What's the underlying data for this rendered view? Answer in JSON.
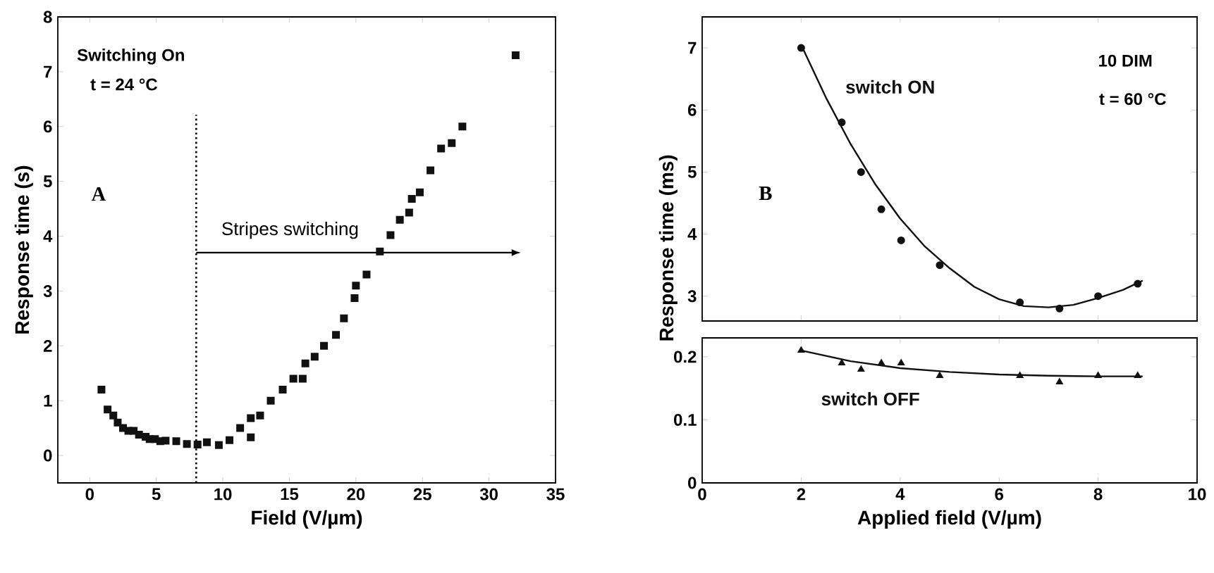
{
  "chart_data": [
    {
      "type": "scatter",
      "xlabel": "Field (V/µm)",
      "ylabel": "Response time (s)",
      "xlim": [
        -2.4,
        35
      ],
      "ylim": [
        -0.5,
        8
      ],
      "xticks": [
        0,
        5,
        10,
        15,
        20,
        25,
        30,
        35
      ],
      "yticks": [
        0,
        1,
        2,
        3,
        4,
        5,
        6,
        7,
        8
      ],
      "marker": "square",
      "annotations": [
        "Switching On",
        "t = 24 °C",
        "A",
        {
          "text": "Stripes switching",
          "x": 8,
          "y": 3.7
        }
      ],
      "ref_lines": [
        {
          "axis": "x",
          "value": 8,
          "line_style": "dotted",
          "color": "#000000"
        }
      ],
      "series": [
        {
          "color": "#111111",
          "x": [
            0.88,
            1.34,
            1.77,
            2.1,
            2.5,
            2.9,
            3.3,
            3.7,
            4.2,
            4.5,
            4.9,
            5.3,
            5.7,
            6.5,
            7.3,
            8.1,
            8.8,
            9.7,
            10.5,
            11.3,
            12.1,
            12.1,
            12.8,
            13.6,
            14.5,
            15.3,
            16.0,
            16.2,
            16.9,
            17.6,
            18.5,
            19.1,
            19.9,
            20.0,
            20.8,
            21.8,
            22.6,
            23.3,
            24.0,
            24.2,
            24.8,
            25.6,
            26.4,
            27.2,
            28.0,
            32.0
          ],
          "values": [
            1.2,
            0.84,
            0.73,
            0.6,
            0.5,
            0.45,
            0.45,
            0.38,
            0.34,
            0.3,
            0.3,
            0.26,
            0.27,
            0.26,
            0.21,
            0.2,
            0.24,
            0.19,
            0.28,
            0.5,
            0.68,
            0.33,
            0.73,
            1.0,
            1.2,
            1.4,
            1.4,
            1.68,
            1.8,
            2.0,
            2.2,
            2.5,
            2.87,
            3.1,
            3.3,
            3.72,
            4.02,
            4.3,
            4.43,
            4.68,
            4.8,
            5.2,
            5.6,
            5.7,
            6.0,
            7.3
          ]
        }
      ]
    },
    {
      "type": "scatter",
      "ylabel": "Response time (ms)",
      "xlim": [
        0,
        10
      ],
      "ylim": [
        2.6,
        7.5
      ],
      "xticks": [
        0,
        2,
        4,
        6,
        8,
        10
      ],
      "yticks": [
        3,
        4,
        5,
        6,
        7
      ],
      "tick_labels": "y",
      "annotations": [
        "10 DIM",
        "t = 60 °C",
        "B"
      ],
      "series": [
        {
          "name": "switch ON",
          "color": "#111111",
          "marker": "circle",
          "x": [
            2.0,
            2.82,
            3.21,
            3.62,
            4.02,
            4.8,
            6.42,
            7.22,
            8.0,
            8.8
          ],
          "values": [
            7.0,
            5.8,
            5.0,
            4.4,
            3.9,
            3.5,
            2.9,
            2.8,
            3.0,
            3.2
          ]
        },
        {
          "type": "line",
          "color": "#111111",
          "marker": "none",
          "line_style": "solid",
          "x": [
            2.0,
            2.5,
            3.0,
            3.5,
            4.0,
            4.5,
            5.0,
            5.5,
            6.0,
            6.5,
            7.0,
            7.5,
            8.0,
            8.5,
            8.9
          ],
          "values": [
            7.05,
            6.2,
            5.45,
            4.8,
            4.25,
            3.8,
            3.45,
            3.15,
            2.95,
            2.84,
            2.82,
            2.86,
            2.97,
            3.1,
            3.25
          ]
        }
      ]
    },
    {
      "type": "scatter",
      "xlabel": "Applied field (V/µm)",
      "xlim": [
        0,
        10
      ],
      "ylim": [
        0,
        0.23
      ],
      "xticks": [
        0,
        2,
        4,
        6,
        8,
        10
      ],
      "yticks": [
        0,
        0.1,
        0.2
      ],
      "series": [
        {
          "name": "switch OFF",
          "color": "#111111",
          "marker": "triangle",
          "x": [
            2.0,
            2.82,
            3.21,
            3.62,
            4.02,
            4.8,
            6.42,
            7.22,
            8.0,
            8.8
          ],
          "values": [
            0.21,
            0.19,
            0.18,
            0.19,
            0.19,
            0.17,
            0.17,
            0.16,
            0.17,
            0.17
          ]
        },
        {
          "type": "line",
          "color": "#111111",
          "marker": "none",
          "line_style": "solid",
          "x": [
            2.0,
            3.0,
            4.0,
            5.0,
            6.0,
            7.0,
            8.0,
            8.9
          ],
          "values": [
            0.21,
            0.193,
            0.182,
            0.176,
            0.172,
            0.17,
            0.169,
            0.169
          ]
        }
      ]
    }
  ]
}
